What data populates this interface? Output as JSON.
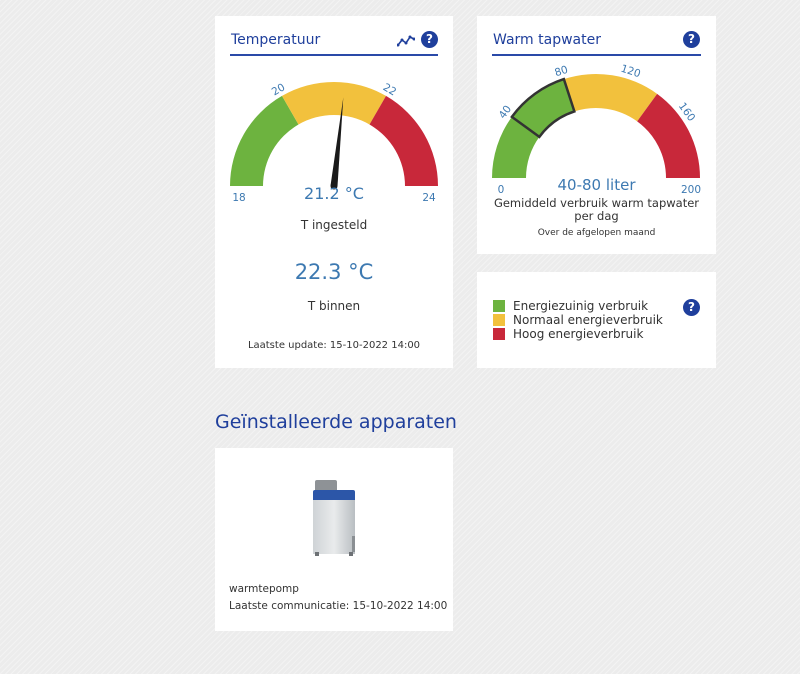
{
  "colors": {
    "brand_blue": "#1f3f9c",
    "value_blue": "#3d79b1",
    "green": "#6db33f",
    "yellow": "#f2c13d",
    "red": "#c8283a"
  },
  "temperature": {
    "title": "Temperatuur",
    "trend_icon": "trend-chart-icon",
    "help_icon": "?",
    "gauge": {
      "min": 18,
      "max": 24,
      "tick_labels": [
        "18",
        "20",
        "22",
        "24"
      ],
      "segments": [
        {
          "from": 18,
          "to": 20,
          "color": "green"
        },
        {
          "from": 20,
          "to": 22,
          "color": "yellow"
        },
        {
          "from": 22,
          "to": 24,
          "color": "red"
        }
      ],
      "needle_value": 21.2,
      "value_text": "21.2 °C"
    },
    "setpoint_label": "T ingesteld",
    "indoor_value": "22.3 °C",
    "indoor_label": "T binnen",
    "last_update": "Laatste update: 15-10-2022 14:00"
  },
  "hot_water": {
    "title": "Warm tapwater",
    "help_icon": "?",
    "gauge": {
      "min": 0,
      "max": 200,
      "tick_labels": [
        "0",
        "40",
        "80",
        "120",
        "160",
        "200"
      ],
      "segments": [
        {
          "from": 0,
          "to": 80,
          "color": "green"
        },
        {
          "from": 80,
          "to": 140,
          "color": "yellow"
        },
        {
          "from": 140,
          "to": 200,
          "color": "red"
        }
      ],
      "highlight_range": [
        40,
        80
      ],
      "value_text": "40-80 liter"
    },
    "description": "Gemiddeld verbruik warm tapwater per dag",
    "subtext": "Over de afgelopen maand"
  },
  "legend": {
    "help_icon": "?",
    "items": [
      {
        "label": "Energiezuinig verbruik",
        "color": "#6db33f"
      },
      {
        "label": "Normaal energieverbruik",
        "color": "#f2c13d"
      },
      {
        "label": "Hoog energieverbruik",
        "color": "#c8283a"
      }
    ]
  },
  "devices": {
    "section_title": "Geïnstalleerde apparaten",
    "items": [
      {
        "icon": "heat-pump-unit-image",
        "name": "warmtepomp",
        "last_communication": "Laatste communicatie: 15-10-2022 14:00"
      }
    ]
  }
}
